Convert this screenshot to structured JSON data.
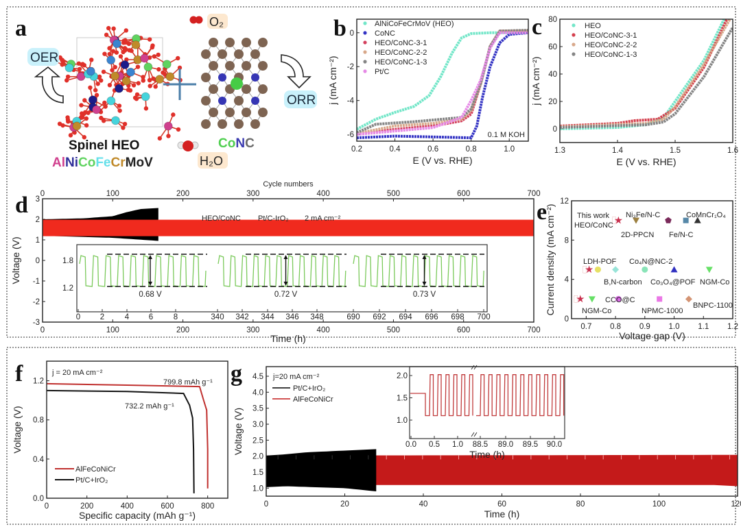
{
  "panel_letters": [
    "a",
    "b",
    "c",
    "d",
    "e",
    "f",
    "g"
  ],
  "panel_a": {
    "oer_label": "OER",
    "orr_label": "ORR",
    "o2_label": "O₂",
    "h2o_label": "H₂O",
    "heo_title": "Spinel HEO",
    "formula_parts": [
      {
        "t": "Al",
        "color": "#d0408e"
      },
      {
        "t": "Ni",
        "color": "#2f2f9a"
      },
      {
        "t": "Co",
        "color": "#5fd35f"
      },
      {
        "t": "Fe",
        "color": "#66e0ea"
      },
      {
        "t": "Cr",
        "color": "#c08a2a"
      },
      {
        "t": "Mo",
        "color": "#222222"
      },
      {
        "t": "V",
        "color": "#222222"
      }
    ],
    "conc_parts": [
      {
        "t": "Co",
        "color": "#4fcf4f"
      },
      {
        "t": "N",
        "color": "#3b3bb0"
      },
      {
        "t": "C",
        "color": "#6b6b6b"
      }
    ]
  },
  "chart_data": [
    {
      "panel": "b",
      "type": "line",
      "xlabel": "E (V vs. RHE)",
      "ylabel": "j (mA cm⁻²)",
      "xlim": [
        0.2,
        1.1
      ],
      "ylim": [
        -6.4,
        0.8
      ],
      "xticks": [
        0.2,
        0.4,
        0.6,
        0.8,
        1.0
      ],
      "xtick_labels": [
        "0.2",
        "0.4",
        "0.6",
        "0.8",
        "1.0"
      ],
      "yticks": [
        0,
        -2,
        -4,
        -6
      ],
      "ytick_labels": [
        "0",
        "-2",
        "-4",
        "-6"
      ],
      "annotation": "0.1 M KOH",
      "legend": "top-left",
      "series": [
        {
          "name": "AlNiCoFeCrMoV (HEO)",
          "color": "#72e6c8",
          "points": [
            [
              0.2,
              -5.7
            ],
            [
              0.3,
              -5.1
            ],
            [
              0.4,
              -4.7
            ],
            [
              0.5,
              -4.35
            ],
            [
              0.58,
              -3.7
            ],
            [
              0.64,
              -2.6
            ],
            [
              0.7,
              -1.2
            ],
            [
              0.75,
              -0.3
            ],
            [
              0.8,
              -0.05
            ],
            [
              0.9,
              0
            ],
            [
              1.1,
              0
            ]
          ]
        },
        {
          "name": "CoNC",
          "color": "#3434c4",
          "points": [
            [
              0.2,
              -6.2
            ],
            [
              0.4,
              -6.1
            ],
            [
              0.6,
              -6.15
            ],
            [
              0.8,
              -6.2
            ],
            [
              0.83,
              -5.5
            ],
            [
              0.86,
              -3.8
            ],
            [
              0.9,
              -2.0
            ],
            [
              0.95,
              -0.6
            ],
            [
              1.0,
              -0.1
            ],
            [
              1.1,
              0
            ]
          ]
        },
        {
          "name": "HEO/CoNC-3-1",
          "color": "#d4405e",
          "points": [
            [
              0.2,
              -6.0
            ],
            [
              0.4,
              -5.7
            ],
            [
              0.6,
              -5.5
            ],
            [
              0.75,
              -5.2
            ],
            [
              0.8,
              -4.8
            ],
            [
              0.85,
              -3.0
            ],
            [
              0.9,
              -0.8
            ],
            [
              0.95,
              0.1
            ],
            [
              1.1,
              0.1
            ]
          ]
        },
        {
          "name": "HEO/CoNC-2-2",
          "color": "#d8a88a",
          "points": [
            [
              0.2,
              -5.95
            ],
            [
              0.4,
              -5.5
            ],
            [
              0.6,
              -5.35
            ],
            [
              0.75,
              -5.1
            ],
            [
              0.8,
              -4.6
            ],
            [
              0.85,
              -3.0
            ],
            [
              0.9,
              -0.8
            ],
            [
              0.95,
              0.1
            ],
            [
              1.1,
              0.12
            ]
          ]
        },
        {
          "name": "HEO/CoNC-1-3",
          "color": "#858585",
          "points": [
            [
              0.2,
              -5.9
            ],
            [
              0.3,
              -5.4
            ],
            [
              0.5,
              -5.25
            ],
            [
              0.75,
              -5.0
            ],
            [
              0.8,
              -4.5
            ],
            [
              0.85,
              -3.0
            ],
            [
              0.9,
              -0.8
            ],
            [
              0.95,
              0.1
            ],
            [
              1.1,
              0.15
            ]
          ]
        },
        {
          "name": "Pt/C",
          "color": "#e689e6",
          "points": [
            [
              0.2,
              -6.0
            ],
            [
              0.4,
              -5.8
            ],
            [
              0.6,
              -5.6
            ],
            [
              0.75,
              -5.0
            ],
            [
              0.8,
              -4.0
            ],
            [
              0.85,
              -2.8
            ],
            [
              0.9,
              -0.9
            ],
            [
              0.95,
              0
            ],
            [
              1.1,
              0
            ]
          ]
        }
      ]
    },
    {
      "panel": "c",
      "type": "line",
      "xlabel": "E (V vs. RHE)",
      "ylabel": "j (mA cm⁻²)",
      "xlim": [
        1.3,
        1.6
      ],
      "ylim": [
        -10,
        80
      ],
      "xticks": [
        1.3,
        1.4,
        1.5,
        1.6
      ],
      "xtick_labels": [
        "1.3",
        "1.4",
        "1.5",
        "1.6"
      ],
      "yticks": [
        0,
        20,
        40,
        60,
        80
      ],
      "ytick_labels": [
        "0",
        "20",
        "40",
        "60",
        "80"
      ],
      "legend": "top-left",
      "series": [
        {
          "name": "HEO",
          "color": "#72e6c8",
          "points": [
            [
              1.3,
              0
            ],
            [
              1.4,
              1
            ],
            [
              1.45,
              3
            ],
            [
              1.48,
              8
            ],
            [
              1.5,
              20
            ],
            [
              1.55,
              50
            ],
            [
              1.585,
              80
            ]
          ]
        },
        {
          "name": "HEO/CoNC-3-1",
          "color": "#d4404e",
          "points": [
            [
              1.3,
              2
            ],
            [
              1.4,
              4
            ],
            [
              1.43,
              6
            ],
            [
              1.47,
              7
            ],
            [
              1.5,
              15
            ],
            [
              1.55,
              45
            ],
            [
              1.59,
              80
            ]
          ]
        },
        {
          "name": "HEO/CoNC-2-2",
          "color": "#d8a88a",
          "points": [
            [
              1.3,
              1.5
            ],
            [
              1.45,
              4
            ],
            [
              1.48,
              7
            ],
            [
              1.5,
              16
            ],
            [
              1.55,
              47
            ],
            [
              1.595,
              80
            ]
          ]
        },
        {
          "name": "HEO/CoNC-1-3",
          "color": "#858585",
          "points": [
            [
              1.3,
              1
            ],
            [
              1.45,
              3
            ],
            [
              1.48,
              5
            ],
            [
              1.5,
              11
            ],
            [
              1.55,
              38
            ],
            [
              1.6,
              74
            ]
          ]
        }
      ]
    },
    {
      "panel": "d",
      "type": "area",
      "xlabel": "Time (h)",
      "x2label": "Cycle numbers",
      "ylabel": "Voltage (V)",
      "xlim": [
        0,
        700
      ],
      "ylim": [
        -3,
        3
      ],
      "xticks": [
        0,
        100,
        200,
        300,
        400,
        500,
        600,
        700
      ],
      "xtick_labels": [
        "0",
        "100",
        "200",
        "300",
        "400",
        "500",
        "600",
        "700"
      ],
      "x2tick_labels": [
        "0",
        "100",
        "200",
        "300",
        "400",
        "500",
        "600",
        "700"
      ],
      "yticks": [
        -3,
        -2,
        -1,
        0,
        1,
        2,
        3
      ],
      "ytick_labels": [
        "-3",
        "-2",
        "-1",
        "0",
        "1",
        "2",
        "3"
      ],
      "legend_items": [
        {
          "name": "HEO/CoNC",
          "color": "#e8506a"
        },
        {
          "name": "Pt/C-IrO₂",
          "color": "#111111"
        },
        {
          "name": "2 mA cm⁻²",
          "color": "#111111"
        }
      ],
      "series": [
        {
          "name": "Pt/C-IrO₂",
          "color": "#000000",
          "upper": [
            [
              0,
              2.0
            ],
            [
              60,
              2.05
            ],
            [
              100,
              2.15
            ],
            [
              120,
              2.35
            ],
            [
              140,
              2.5
            ],
            [
              165,
              2.55
            ]
          ],
          "lower": [
            [
              0,
              1.2
            ],
            [
              100,
              1.1
            ],
            [
              165,
              0.95
            ]
          ]
        },
        {
          "name": "HEO/CoNC",
          "color": "#f02a1e",
          "upper": [
            [
              0,
              1.98
            ],
            [
              700,
              1.98
            ]
          ],
          "lower": [
            [
              0,
              1.18
            ],
            [
              700,
              1.18
            ]
          ]
        }
      ],
      "inset": {
        "ytick_labels": [
          "1.8",
          "1.2"
        ],
        "xtick_labels": [
          "0",
          "2",
          "4",
          "6",
          "8",
          "340",
          "342",
          "344",
          "346",
          "348",
          "690",
          "692",
          "694",
          "696",
          "698",
          "700"
        ],
        "voltage_gaps": [
          "0.68 V",
          "0.72 V",
          "0.73 V"
        ],
        "color": "#7ac95a"
      }
    },
    {
      "panel": "e",
      "type": "scatter",
      "xlabel": "Voltage gap (V)",
      "ylabel": "Current density (mA cm⁻²)",
      "xlim": [
        0.65,
        1.2
      ],
      "ylim": [
        0,
        12
      ],
      "xticks": [
        0.7,
        0.8,
        0.9,
        1.0,
        1.1,
        1.2
      ],
      "xtick_labels": [
        "0.7",
        "0.8",
        "0.9",
        "1.0",
        "1.1",
        "1.2"
      ],
      "yticks": [
        0,
        4,
        8,
        12
      ],
      "ytick_labels": [
        "0",
        "4",
        "8",
        "12"
      ],
      "points": [
        {
          "x": 0.81,
          "y": 10,
          "marker": "star",
          "color": "#c8304e"
        },
        {
          "x": 0.71,
          "y": 5,
          "marker": "star",
          "color": "#c8304e"
        },
        {
          "x": 0.68,
          "y": 2,
          "marker": "star",
          "color": "#c8304e"
        },
        {
          "x": 0.87,
          "y": 10,
          "marker": "tri-down",
          "color": "#9c8040"
        },
        {
          "x": 0.98,
          "y": 10,
          "marker": "pentagon",
          "color": "#7a2a5a"
        },
        {
          "x": 1.04,
          "y": 10,
          "marker": "square",
          "color": "#5688a8"
        },
        {
          "x": 1.08,
          "y": 10,
          "marker": "tri-up",
          "color": "#333333"
        },
        {
          "x": 0.74,
          "y": 5,
          "marker": "circle",
          "color": "#e6e064"
        },
        {
          "x": 0.8,
          "y": 5,
          "marker": "diamond",
          "color": "#98e4d8"
        },
        {
          "x": 0.9,
          "y": 5,
          "marker": "circle",
          "color": "#8ae4b8"
        },
        {
          "x": 1.0,
          "y": 5,
          "marker": "tri-up",
          "color": "#3030c0"
        },
        {
          "x": 1.12,
          "y": 5,
          "marker": "tri-down",
          "color": "#66e066"
        },
        {
          "x": 0.72,
          "y": 2,
          "marker": "tri-down",
          "color": "#66e066"
        },
        {
          "x": 0.81,
          "y": 2,
          "marker": "circle",
          "color": "#d868e4"
        },
        {
          "x": 0.95,
          "y": 2,
          "marker": "square",
          "color": "#ea78e6"
        },
        {
          "x": 1.05,
          "y": 2,
          "marker": "diamond",
          "color": "#d49474"
        }
      ],
      "labels": [
        {
          "text": "This work",
          "color": "#d0506a"
        },
        {
          "text": "HEO/CoNC",
          "color": "#d0506a"
        },
        {
          "text": "Ni₃Fe/N-C",
          "color": "#8a2a6a"
        },
        {
          "text": "2D-PPCN",
          "color": "#9c8040"
        },
        {
          "text": "CoMnCr₁O₄",
          "color": "#444444"
        },
        {
          "text": "Fe/N-C",
          "color": "#5688a8"
        },
        {
          "text": "LDH-POF",
          "color": "#e0dc60"
        },
        {
          "text": "Co₄N@NC-2",
          "color": "#8ae4c8"
        },
        {
          "text": "B,N-carbon",
          "color": "#8ad8d8"
        },
        {
          "text": "Co₃O₄@POF",
          "color": "#4040c0"
        },
        {
          "text": "NGM-Co",
          "color": "#66e066"
        },
        {
          "text": "CCO@C",
          "color": "#d060e0"
        },
        {
          "text": "NGM-Co",
          "color": "#66e066"
        },
        {
          "text": "NPMC-1000",
          "color": "#e078e0"
        },
        {
          "text": "BNPC-1100",
          "color": "#d49474"
        }
      ]
    },
    {
      "panel": "f",
      "type": "line",
      "xlabel": "Specific capacity (mAh g⁻¹)",
      "ylabel": "Voltage (V)",
      "xlim": [
        0,
        900
      ],
      "ylim": [
        0,
        1.4
      ],
      "xticks": [
        0,
        200,
        400,
        600,
        800
      ],
      "xtick_labels": [
        "0",
        "200",
        "400",
        "600",
        "800"
      ],
      "yticks": [
        0,
        0.4,
        0.8,
        1.2
      ],
      "ytick_labels": [
        "0.0",
        "0.4",
        "0.8",
        "1.2"
      ],
      "annotations": [
        "j = 20 mA cm⁻²",
        "799.8 mAh g⁻¹",
        "732.2 mAh g⁻¹"
      ],
      "legend": "bottom-left",
      "series": [
        {
          "name": "AlFeCoNiCr",
          "color": "#c0302e",
          "points": [
            [
              0,
              1.17
            ],
            [
              400,
              1.155
            ],
            [
              760,
              1.14
            ],
            [
              780,
              1.0
            ],
            [
              795,
              0.9
            ],
            [
              800,
              0.5
            ],
            [
              800,
              0.1
            ]
          ]
        },
        {
          "name": "Pt/C+IrO₂",
          "color": "#111111",
          "points": [
            [
              0,
              1.1
            ],
            [
              400,
              1.09
            ],
            [
              680,
              1.07
            ],
            [
              710,
              0.95
            ],
            [
              725,
              0.82
            ],
            [
              730,
              0.5
            ],
            [
              732,
              0.05
            ]
          ]
        }
      ]
    },
    {
      "panel": "g",
      "type": "area",
      "xlabel": "Time (h)",
      "ylabel": "Voltage (V)",
      "xlim": [
        0,
        120
      ],
      "ylim": [
        0.75,
        4.8
      ],
      "xticks": [
        0,
        20,
        40,
        60,
        80,
        100,
        120
      ],
      "xtick_labels": [
        "0",
        "20",
        "40",
        "60",
        "80",
        "100",
        "120"
      ],
      "yticks": [
        1.0,
        1.5,
        2.0,
        2.5,
        3.0,
        3.5,
        4.0,
        4.5
      ],
      "ytick_labels": [
        "1.0",
        "1.5",
        "2.0",
        "2.5",
        "3.0",
        "3.5",
        "4.0",
        "4.5"
      ],
      "annotation": "j=20 mA cm⁻²",
      "legend": "top-left",
      "series": [
        {
          "name": "Pt/C+IrO₂",
          "color": "#000000",
          "upper": [
            [
              0,
              2.02
            ],
            [
              5,
              2.06
            ],
            [
              10,
              2.12
            ],
            [
              28,
              2.22
            ]
          ],
          "lower": [
            [
              0,
              1.03
            ],
            [
              5,
              1.06
            ],
            [
              20,
              1.0
            ],
            [
              28,
              0.9
            ]
          ]
        },
        {
          "name": "AlFeCoNiCr",
          "color": "#c41a1a",
          "upper": [
            [
              0,
              2.02
            ],
            [
              120,
              2.04
            ]
          ],
          "lower": [
            [
              0,
              1.1
            ],
            [
              114,
              1.1
            ],
            [
              115,
              1.06
            ],
            [
              120,
              1.06
            ]
          ]
        }
      ],
      "inset": {
        "xlabel": "Time (h)",
        "xtick_labels": [
          "0.0",
          "0.5",
          "1.0",
          "88.5",
          "89.0",
          "89.5",
          "90.0"
        ],
        "ytick_labels": [
          "1.0",
          "1.5",
          "2.0"
        ],
        "color": "#c0393a"
      }
    }
  ]
}
